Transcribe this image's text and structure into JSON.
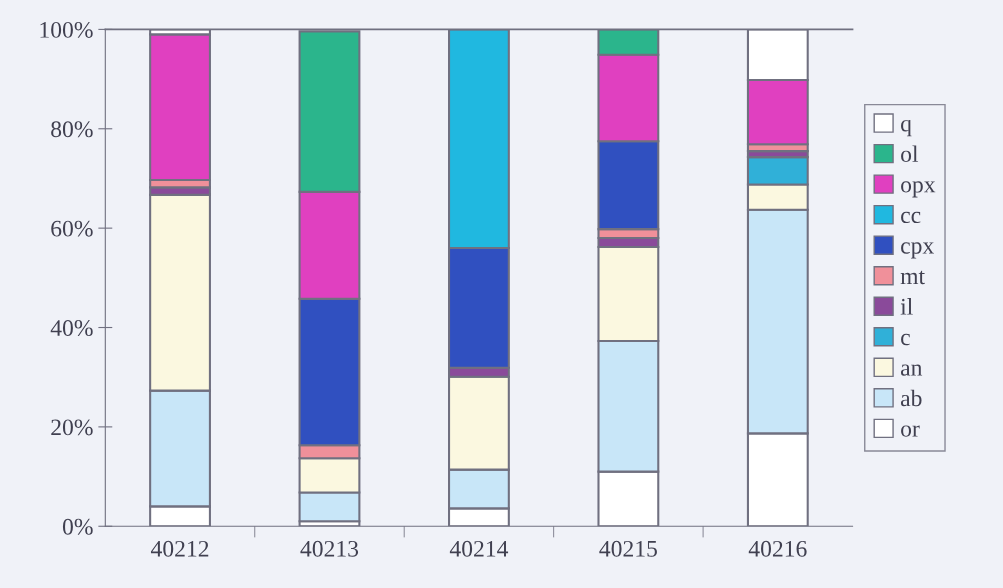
{
  "chart_data": {
    "type": "bar",
    "stacked": true,
    "categories": [
      "40212",
      "40213",
      "40214",
      "40215",
      "40216"
    ],
    "series": [
      {
        "name": "or",
        "color": "#ffffff",
        "values": [
          4,
          1,
          3.6,
          11,
          18.7
        ]
      },
      {
        "name": "ab",
        "color": "#c8e6f8",
        "values": [
          23.3,
          5.8,
          7.8,
          26.3,
          45
        ]
      },
      {
        "name": "an",
        "color": "#fbf8e0",
        "values": [
          39.4,
          6.9,
          18.7,
          18.9,
          5.1
        ]
      },
      {
        "name": "c",
        "color": "#30b0d8",
        "values": [
          0,
          0,
          0,
          0,
          5.5
        ]
      },
      {
        "name": "il",
        "color": "#8a4a9a",
        "values": [
          1.5,
          null,
          1.8,
          1.8,
          1.2
        ]
      },
      {
        "name": "mt",
        "color": "#f0909a",
        "values": [
          1.5,
          2.6,
          0,
          1.8,
          1.4
        ]
      },
      {
        "name": "cpx",
        "color": "#3050c0",
        "values": [
          0,
          29.5,
          24.1,
          17.7,
          0
        ]
      },
      {
        "name": "cc",
        "color": "#20b8e0",
        "values": [
          0,
          0,
          44,
          0,
          0
        ]
      },
      {
        "name": "opx",
        "color": "#e040c0",
        "values": [
          29.3,
          21.5,
          0,
          17.4,
          12.9
        ]
      },
      {
        "name": "ol",
        "color": "#2bb58c",
        "values": [
          0,
          32.3,
          0,
          5.1,
          0
        ]
      },
      {
        "name": "q",
        "color": "#ffffff",
        "values": [
          1,
          0,
          0,
          0,
          10.2
        ]
      }
    ],
    "ylim": [
      0,
      100
    ],
    "yticks": [
      {
        "value": 0,
        "label": "0%"
      },
      {
        "value": 20,
        "label": "20%"
      },
      {
        "value": 40,
        "label": "40%"
      },
      {
        "value": 60,
        "label": "60%"
      },
      {
        "value": 80,
        "label": "80%"
      },
      {
        "value": 100,
        "label": "100%"
      }
    ],
    "grid": false,
    "legend": "right"
  }
}
